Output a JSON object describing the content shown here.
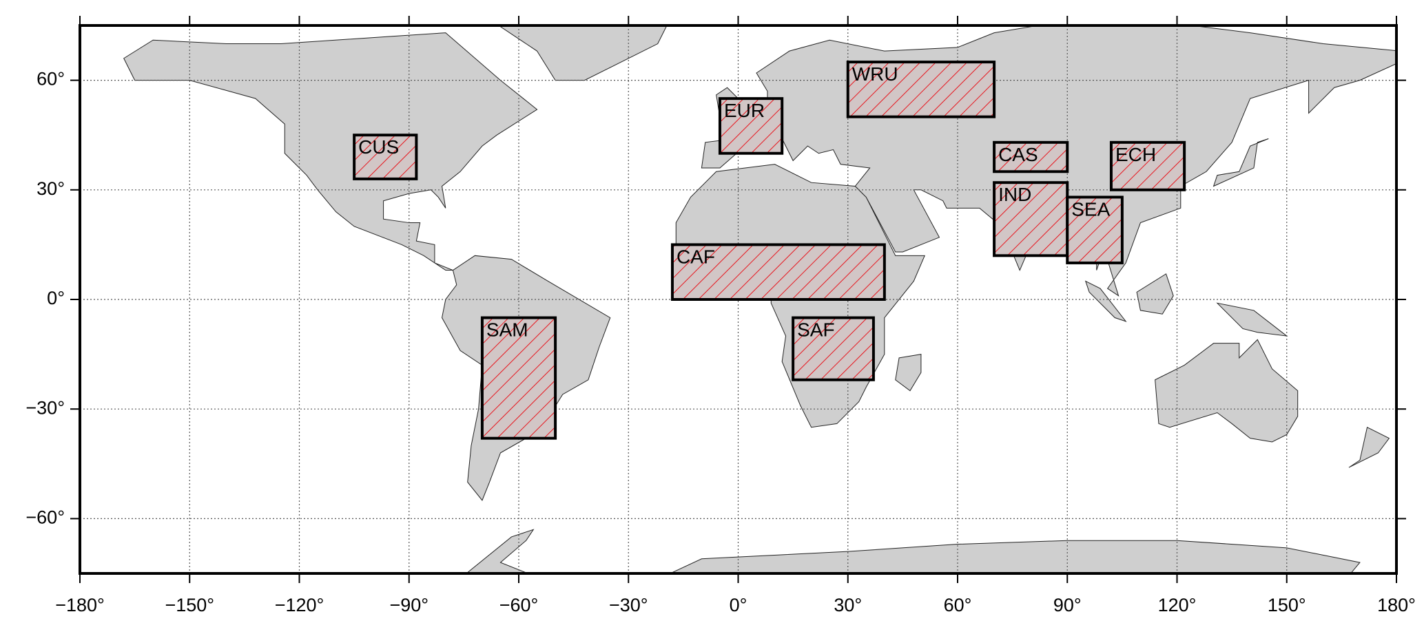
{
  "chart_data": {
    "type": "map",
    "xlim": [
      -180,
      180
    ],
    "ylim": [
      -75,
      75
    ],
    "xticks": [
      {
        "value": -180,
        "label": "−180°"
      },
      {
        "value": -150,
        "label": "−150°"
      },
      {
        "value": -120,
        "label": "−120°"
      },
      {
        "value": -90,
        "label": "−90°"
      },
      {
        "value": -60,
        "label": "−60°"
      },
      {
        "value": -30,
        "label": "−30°"
      },
      {
        "value": 0,
        "label": "0°"
      },
      {
        "value": 30,
        "label": "30°"
      },
      {
        "value": 60,
        "label": "60°"
      },
      {
        "value": 90,
        "label": "90°"
      },
      {
        "value": 120,
        "label": "120°"
      },
      {
        "value": 150,
        "label": "150°"
      },
      {
        "value": 180,
        "label": "180°"
      }
    ],
    "yticks": [
      {
        "value": -60,
        "label": "−60°"
      },
      {
        "value": -30,
        "label": "−30°"
      },
      {
        "value": 0,
        "label": "0°"
      },
      {
        "value": 30,
        "label": "30°"
      },
      {
        "value": 60,
        "label": "60°"
      }
    ],
    "grid": true,
    "hatch_color": "#e8141c",
    "regions": [
      {
        "label": "CUS",
        "lon": [
          -105,
          -88
        ],
        "lat": [
          33,
          45
        ]
      },
      {
        "label": "EUR",
        "lon": [
          -5,
          12
        ],
        "lat": [
          40,
          55
        ]
      },
      {
        "label": "WRU",
        "lon": [
          30,
          70
        ],
        "lat": [
          50,
          65
        ]
      },
      {
        "label": "CAS",
        "lon": [
          70,
          90
        ],
        "lat": [
          35,
          43
        ]
      },
      {
        "label": "ECH",
        "lon": [
          102,
          122
        ],
        "lat": [
          30,
          43
        ]
      },
      {
        "label": "IND",
        "lon": [
          70,
          90
        ],
        "lat": [
          12,
          32
        ]
      },
      {
        "label": "SEA",
        "lon": [
          90,
          105
        ],
        "lat": [
          10,
          28
        ]
      },
      {
        "label": "CAF",
        "lon": [
          -18,
          40
        ],
        "lat": [
          0,
          15
        ]
      },
      {
        "label": "SAF",
        "lon": [
          15,
          37
        ],
        "lat": [
          -22,
          -5
        ]
      },
      {
        "label": "SAM",
        "lon": [
          -70,
          -50
        ],
        "lat": [
          -38,
          -5
        ]
      }
    ]
  }
}
